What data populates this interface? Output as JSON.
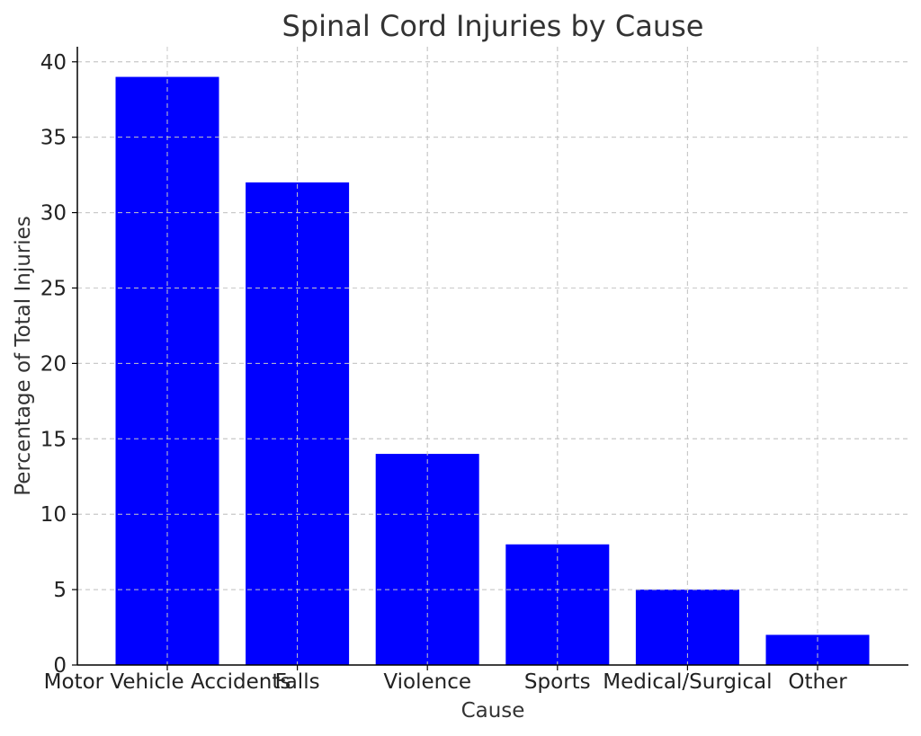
{
  "chart_data": {
    "type": "bar",
    "title": "Spinal Cord Injuries by Cause",
    "xlabel": "Cause",
    "ylabel": "Percentage of Total Injuries",
    "categories": [
      "Motor Vehicle Accidents",
      "Falls",
      "Violence",
      "Sports",
      "Medical/Surgical",
      "Other"
    ],
    "values": [
      39,
      32,
      14,
      8,
      5,
      2
    ],
    "ylim": [
      0,
      41
    ],
    "yticks": [
      0,
      5,
      10,
      15,
      20,
      25,
      30,
      35,
      40
    ],
    "bar_color": "#0000ff",
    "grid": true
  }
}
